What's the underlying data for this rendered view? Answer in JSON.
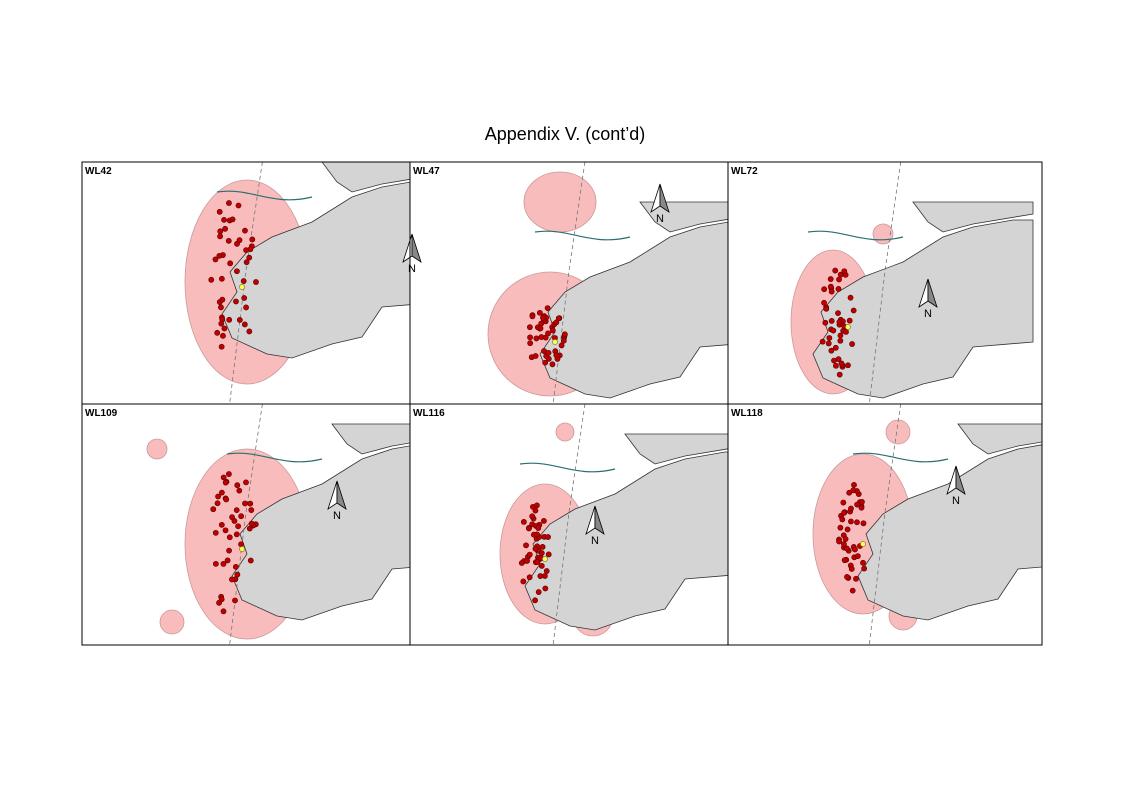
{
  "title": "Appendix V.  (cont’d)",
  "panels": [
    {
      "label": "WL42",
      "north": "N"
    },
    {
      "label": "WL47",
      "north": "N"
    },
    {
      "label": "WL72",
      "north": "N"
    },
    {
      "label": "WL109",
      "north": "N"
    },
    {
      "label": "WL116",
      "north": "N"
    },
    {
      "label": "WL118",
      "north": "N"
    }
  ]
}
